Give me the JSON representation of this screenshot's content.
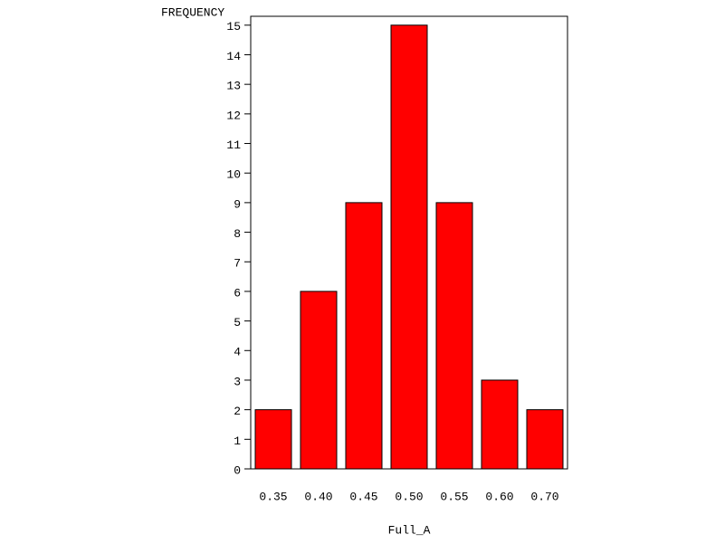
{
  "chart_data": {
    "type": "bar",
    "y_label": "FREQUENCY",
    "x_label": "Full_A",
    "categories": [
      "0.35",
      "0.40",
      "0.45",
      "0.50",
      "0.55",
      "0.60",
      "0.70"
    ],
    "values": [
      2,
      6,
      9,
      15,
      9,
      3,
      2
    ],
    "color": "#ff0000",
    "ylim": [
      0,
      15.3
    ],
    "yticks": [
      0,
      1,
      2,
      3,
      4,
      5,
      6,
      7,
      8,
      9,
      10,
      11,
      12,
      13,
      14,
      15
    ]
  }
}
